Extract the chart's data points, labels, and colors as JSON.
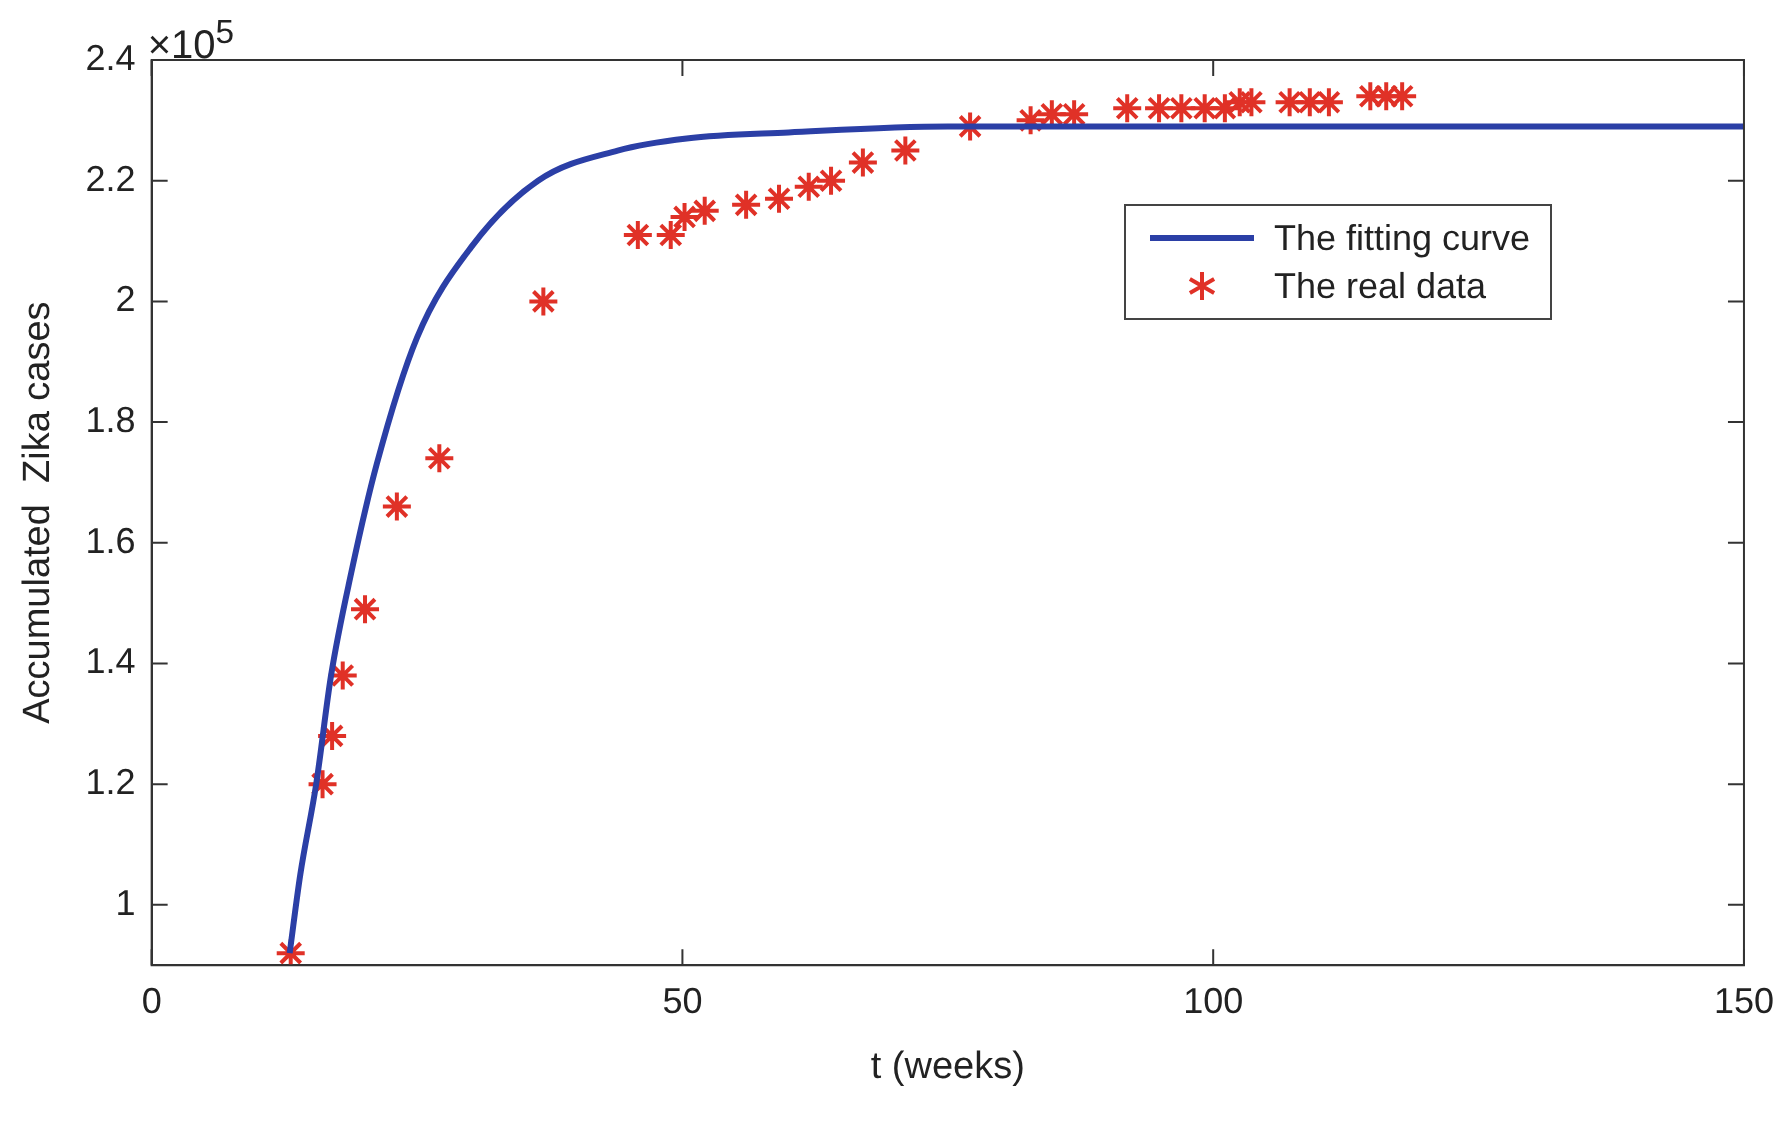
{
  "chart_data": {
    "type": "scatter",
    "xlabel": "t (weeks)",
    "ylabel": "Accumulated  Zika cases",
    "annotations": [
      "×10$^{5}$"
    ],
    "xlim": [
      0,
      150
    ],
    "xticks": [
      0,
      50,
      100,
      150
    ],
    "ylim": [
      0.9,
      2.4
    ],
    "yticks": [
      1,
      1.2,
      1.4,
      1.6,
      1.8,
      2,
      2.2,
      2.4
    ],
    "grid": false,
    "legend": "top right",
    "series": [
      {
        "name": "The fitting curve",
        "type": "line",
        "color": "#2b3fa6",
        "marker": "none",
        "line_style": "solid",
        "x": [
          13,
          14,
          15.5,
          16.9,
          18.8,
          21.2,
          25,
          30.1,
          36.4,
          43.9,
          50.4,
          60,
          75,
          150
        ],
        "values": [
          0.92,
          1.05,
          1.2,
          1.38,
          1.55,
          1.73,
          1.94,
          2.09,
          2.2,
          2.25,
          2.27,
          2.28,
          2.29,
          2.29
        ]
      },
      {
        "name": "The real data",
        "color": "#e03127",
        "marker": "cross",
        "x": [
          13.1,
          16.1,
          17,
          18,
          20.1,
          23.1,
          27.1,
          36.9,
          45.8,
          48.9,
          50.2,
          52.1,
          56,
          59.1,
          61.9,
          64,
          67,
          71,
          77.1,
          82.8,
          84.8,
          86.9,
          91.9,
          94.9,
          97,
          99.2,
          101.1,
          102.5,
          103.6,
          107.2,
          109.1,
          110.9,
          114.8,
          116.3,
          117.8
        ],
        "values": [
          0.92,
          1.2,
          1.28,
          1.38,
          1.49,
          1.66,
          1.74,
          2,
          2.11,
          2.11,
          2.14,
          2.15,
          2.16,
          2.17,
          2.19,
          2.2,
          2.23,
          2.25,
          2.29,
          2.3,
          2.31,
          2.31,
          2.32,
          2.32,
          2.32,
          2.32,
          2.32,
          2.33,
          2.33,
          2.33,
          2.33,
          2.33,
          2.34,
          2.34,
          2.34
        ]
      }
    ]
  }
}
